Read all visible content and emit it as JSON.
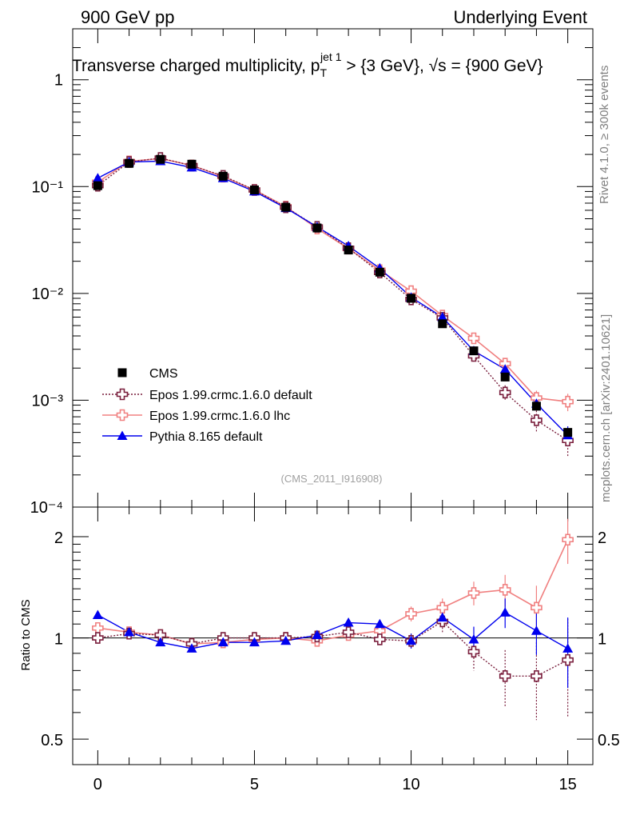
{
  "header": {
    "left": "900 GeV pp",
    "right": "Underlying Event"
  },
  "title": {
    "main": "Transverse charged multiplicity, p",
    "sub": "T",
    "sup": "jet 1",
    "rest": " > {3 GeV}, √s = {900 GeV}"
  },
  "side_labels": {
    "rivet": "Rivet 4.1.0, ≥ 300k events",
    "mcplots": "mcplots.cern.ch [arXiv:2401.10621]"
  },
  "analysis_id": "(CMS_2011_I916908)",
  "colors": {
    "cms": "#000000",
    "epos_default": "#7a1f3d",
    "epos_lhc": "#f08080",
    "pythia": "#0000ee"
  },
  "legend": [
    {
      "key": "cms",
      "label": "CMS"
    },
    {
      "key": "epos_default",
      "label": "Epos 1.99.crmc.1.6.0 default"
    },
    {
      "key": "epos_lhc",
      "label": "Epos 1.99.crmc.1.6.0 lhc"
    },
    {
      "key": "pythia",
      "label": "Pythia 8.165 default"
    }
  ],
  "chart_data": [
    {
      "type": "scatter",
      "title": "Transverse charged multiplicity, pT jet 1 > {3 GeV}, sqrt(s) = {900 GeV}",
      "yscale": "log",
      "xlim": [
        -0.8,
        15.8
      ],
      "ylim": [
        0.0001,
        3
      ],
      "yticklabels": [
        "1",
        "10⁻¹",
        "10⁻²",
        "10⁻³",
        "10⁻⁴"
      ],
      "x": [
        0,
        1,
        2,
        3,
        4,
        5,
        6,
        7,
        8,
        9,
        10,
        11,
        12,
        13,
        14,
        15
      ],
      "series": [
        {
          "name": "CMS",
          "key": "cms",
          "marker": "square",
          "values": [
            0.102,
            0.165,
            0.18,
            0.162,
            0.125,
            0.093,
            0.064,
            0.041,
            0.0255,
            0.0158,
            0.009,
            0.0052,
            0.0029,
            0.00165,
            0.00088,
            0.0005
          ]
        },
        {
          "name": "Epos 1.99.crmc.1.6.0 default",
          "key": "epos_default",
          "marker": "open-cross",
          "values": [
            0.102,
            0.17,
            0.185,
            0.157,
            0.126,
            0.093,
            0.064,
            0.042,
            0.0265,
            0.0157,
            0.0088,
            0.0059,
            0.0026,
            0.00118,
            0.00065,
            0.00042
          ],
          "errors": [
            0,
            0,
            0,
            0,
            0,
            0,
            0,
            0,
            0,
            0,
            0,
            0,
            0.0003,
            0.0002,
            0.00015,
            0.00012
          ]
        },
        {
          "name": "Epos 1.99.crmc.1.6.0 lhc",
          "key": "epos_lhc",
          "marker": "open-cross",
          "values": [
            0.11,
            0.172,
            0.183,
            0.158,
            0.124,
            0.093,
            0.065,
            0.0405,
            0.0263,
            0.0165,
            0.0105,
            0.0062,
            0.0038,
            0.0022,
            0.00105,
            0.00097
          ],
          "errors": [
            0,
            0,
            0,
            0,
            0,
            0,
            0,
            0,
            0,
            0,
            0,
            0.0003,
            0.0003,
            0.00025,
            0.00018,
            0.00018
          ]
        },
        {
          "name": "Pythia 8.165 default",
          "key": "pythia",
          "marker": "triangle",
          "values": [
            0.12,
            0.17,
            0.173,
            0.151,
            0.12,
            0.09,
            0.063,
            0.042,
            0.0278,
            0.0172,
            0.0092,
            0.006,
            0.0029,
            0.00195,
            0.00093,
            0.00047
          ],
          "errors": [
            0,
            0,
            0,
            0,
            0,
            0,
            0,
            0,
            0,
            0,
            0,
            0.0002,
            0.0002,
            0.0002,
            0.00012,
            0.0001
          ]
        }
      ]
    },
    {
      "type": "line",
      "ylabel": "Ratio to CMS",
      "yscale": "log",
      "xlabel": "",
      "xlim": [
        -0.8,
        15.8
      ],
      "ylim": [
        0.42,
        2.45
      ],
      "yticklabels": [
        "0.5",
        "1",
        "2"
      ],
      "xticklabels": [
        "0",
        "5",
        "10",
        "15"
      ],
      "x": [
        0,
        1,
        2,
        3,
        4,
        5,
        6,
        7,
        8,
        9,
        10,
        11,
        12,
        13,
        14,
        15
      ],
      "series": [
        {
          "name": "Epos 1.99.crmc.1.6.0 default",
          "key": "epos_default",
          "values": [
            1.0,
            1.03,
            1.02,
            0.96,
            1.0,
            1.0,
            1.0,
            1.01,
            1.04,
            0.99,
            0.98,
            1.12,
            0.91,
            0.77,
            0.77,
            0.86
          ],
          "errors": [
            0.01,
            0.01,
            0.01,
            0.01,
            0.01,
            0.01,
            0.01,
            0.02,
            0.03,
            0.03,
            0.05,
            0.08,
            0.11,
            0.15,
            0.2,
            0.28
          ]
        },
        {
          "name": "Epos 1.99.crmc.1.6.0 lhc",
          "key": "epos_lhc",
          "values": [
            1.07,
            1.04,
            1.02,
            0.96,
            0.97,
            0.99,
            1.0,
            0.98,
            1.02,
            1.05,
            1.18,
            1.23,
            1.36,
            1.39,
            1.23,
            1.96
          ],
          "errors": [
            0.01,
            0.01,
            0.01,
            0.01,
            0.01,
            0.01,
            0.01,
            0.02,
            0.03,
            0.03,
            0.06,
            0.08,
            0.11,
            0.15,
            0.2,
            0.3
          ]
        },
        {
          "name": "Pythia 8.165 default",
          "key": "pythia",
          "values": [
            1.17,
            1.04,
            0.97,
            0.93,
            0.97,
            0.97,
            0.98,
            1.02,
            1.11,
            1.1,
            0.98,
            1.15,
            0.99,
            1.19,
            1.05,
            0.93
          ],
          "errors": [
            0.01,
            0.01,
            0.01,
            0.01,
            0.01,
            0.01,
            0.01,
            0.02,
            0.03,
            0.03,
            0.05,
            0.07,
            0.09,
            0.12,
            0.16,
            0.22
          ]
        }
      ]
    }
  ]
}
